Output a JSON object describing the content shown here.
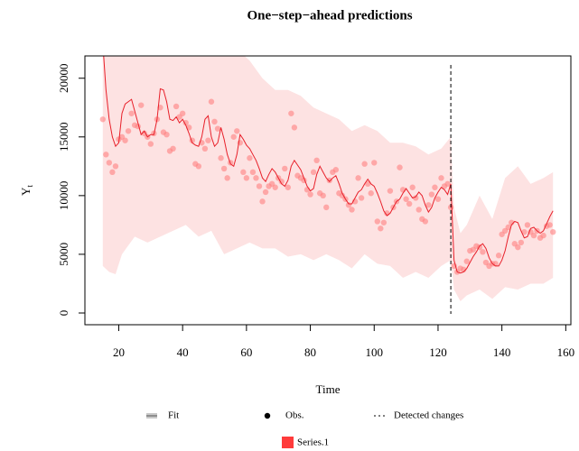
{
  "chart_data": {
    "type": "line",
    "title": "One−step−ahead predictions",
    "xlabel": "Time",
    "ylabel": "Y",
    "ylabel_sub": "t",
    "x": [
      15,
      16,
      17,
      18,
      19,
      20,
      21,
      22,
      23,
      24,
      25,
      26,
      27,
      28,
      29,
      30,
      31,
      32,
      33,
      34,
      35,
      36,
      37,
      38,
      39,
      40,
      41,
      42,
      43,
      44,
      45,
      46,
      47,
      48,
      49,
      50,
      51,
      52,
      53,
      54,
      55,
      56,
      57,
      58,
      59,
      60,
      61,
      62,
      63,
      64,
      65,
      66,
      67,
      68,
      69,
      70,
      71,
      72,
      73,
      74,
      75,
      76,
      77,
      78,
      79,
      80,
      81,
      82,
      83,
      84,
      85,
      86,
      87,
      88,
      89,
      90,
      91,
      92,
      93,
      94,
      95,
      96,
      97,
      98,
      99,
      100,
      101,
      102,
      103,
      104,
      105,
      106,
      107,
      108,
      109,
      110,
      111,
      112,
      113,
      114,
      115,
      116,
      117,
      118,
      119,
      120,
      121,
      122,
      123,
      124,
      125,
      126,
      127,
      128,
      129,
      130,
      131,
      132,
      133,
      134,
      135,
      136,
      137,
      138,
      139,
      140,
      141,
      142,
      143,
      144,
      145,
      146,
      147,
      148,
      149,
      150,
      151,
      152,
      153,
      154,
      155,
      156
    ],
    "series": [
      {
        "name": "Fit",
        "color": "#e8202a",
        "values": [
          23000,
          19000,
          16500,
          15000,
          14200,
          14500,
          17000,
          17800,
          18000,
          18200,
          17200,
          16200,
          15200,
          15500,
          15000,
          15200,
          15200,
          16500,
          19100,
          19000,
          18000,
          16500,
          16400,
          16700,
          16200,
          16500,
          16000,
          15300,
          14500,
          14300,
          14200,
          15000,
          16500,
          16800,
          15000,
          14200,
          14500,
          15800,
          14800,
          13500,
          12700,
          12500,
          13500,
          15200,
          14800,
          14300,
          14000,
          13500,
          13000,
          12300,
          11500,
          11200,
          11800,
          12300,
          12000,
          11500,
          11000,
          10800,
          11300,
          12500,
          13000,
          12600,
          12200,
          11500,
          10800,
          10400,
          10600,
          11800,
          12500,
          12000,
          11500,
          11200,
          11500,
          11700,
          11000,
          10200,
          9700,
          9300,
          9300,
          9800,
          10300,
          10500,
          11000,
          11400,
          11000,
          10800,
          10200,
          9500,
          8700,
          8300,
          8500,
          9000,
          9500,
          9700,
          10200,
          10600,
          10200,
          9800,
          9900,
          10300,
          10000,
          9200,
          8600,
          9000,
          9800,
          10300,
          10700,
          10500,
          10100,
          11000,
          4500,
          3500,
          3400,
          3500,
          3800,
          4300,
          4800,
          5200,
          5700,
          5900,
          5500,
          4700,
          4200,
          4000,
          4000,
          4500,
          5300,
          6500,
          7500,
          7800,
          7700,
          7000,
          6400,
          6500,
          7200,
          7300,
          7000,
          6800,
          7000,
          7600,
          8200,
          8700
        ]
      },
      {
        "name": "Obs.",
        "color": "#ff8080",
        "values": [
          16500,
          13500,
          12800,
          12000,
          12500,
          14800,
          15000,
          14700,
          15500,
          17000,
          16000,
          15900,
          17700,
          15300,
          15000,
          14400,
          15300,
          16500,
          17500,
          15400,
          15200,
          13800,
          14000,
          17600,
          16700,
          17000,
          16200,
          15800,
          14700,
          12700,
          12500,
          14500,
          14000,
          14700,
          18000,
          16300,
          15700,
          13200,
          12300,
          11500,
          12800,
          15000,
          15500,
          14500,
          12000,
          11500,
          13200,
          12000,
          11500,
          10800,
          9500,
          10300,
          10800,
          11000,
          10700,
          11500,
          11200,
          12300,
          10700,
          17000,
          15800,
          11700,
          11500,
          11300,
          10500,
          10100,
          12000,
          13000,
          10200,
          10000,
          9000,
          11300,
          12000,
          12200,
          10200,
          10000,
          9700,
          9200,
          8800,
          9500,
          11500,
          9800,
          12700,
          11000,
          10200,
          12800,
          7800,
          7200,
          7700,
          8500,
          10400,
          9000,
          9500,
          12400,
          10500,
          9700,
          9300,
          10700,
          9800,
          8800,
          8000,
          7800,
          9200,
          10100,
          10700,
          9700,
          11500,
          10800,
          11000,
          9000,
          4000,
          3500,
          3800,
          3700,
          4400,
          5300,
          5400,
          5700,
          5600,
          5200,
          4300,
          4000,
          4200,
          4200,
          4900,
          6700,
          7000,
          7300,
          7700,
          5900,
          5600,
          6000,
          6900,
          7500,
          6900,
          6600,
          7000,
          6400,
          6600,
          7400,
          7500,
          6900
        ]
      }
    ],
    "band": {
      "color": "#fde2e2",
      "x": [
        15,
        17,
        19,
        21,
        25,
        29,
        33,
        37,
        41,
        45,
        49,
        53,
        57,
        61,
        65,
        69,
        73,
        77,
        81,
        85,
        89,
        93,
        97,
        101,
        105,
        109,
        113,
        117,
        121,
        124,
        125,
        127,
        129,
        133,
        137,
        141,
        145,
        149,
        153,
        156
      ],
      "upper": [
        25000,
        25000,
        25000,
        25000,
        25000,
        25000,
        25000,
        25000,
        25000,
        24000,
        23000,
        22000,
        22500,
        21500,
        20000,
        19000,
        19000,
        18500,
        17500,
        17000,
        16500,
        15500,
        16000,
        15500,
        14500,
        14500,
        14200,
        13500,
        14000,
        15000,
        9000,
        6800,
        7500,
        10000,
        8000,
        11500,
        12500,
        11000,
        11500,
        12000
      ],
      "lower": [
        4000,
        3500,
        3300,
        5000,
        6500,
        6000,
        6500,
        7000,
        7500,
        6500,
        7000,
        5000,
        5500,
        6000,
        5500,
        5500,
        4800,
        5000,
        4500,
        5000,
        4500,
        3800,
        5000,
        4200,
        4000,
        3000,
        3500,
        3000,
        4000,
        4500,
        2000,
        1000,
        1500,
        2000,
        1200,
        2200,
        2000,
        2500,
        2500,
        3000
      ]
    },
    "changepoint": {
      "name": "Detected changes",
      "x": 124
    },
    "extra_legend": {
      "name": "Series.1",
      "color": "#ff3b3b"
    },
    "xlim": [
      9.4,
      161.6
    ],
    "ylim": [
      -1000,
      21900
    ],
    "xticks": [
      20,
      40,
      60,
      80,
      100,
      120,
      140,
      160
    ],
    "yticks": [
      0,
      5000,
      10000,
      15000,
      20000
    ]
  }
}
